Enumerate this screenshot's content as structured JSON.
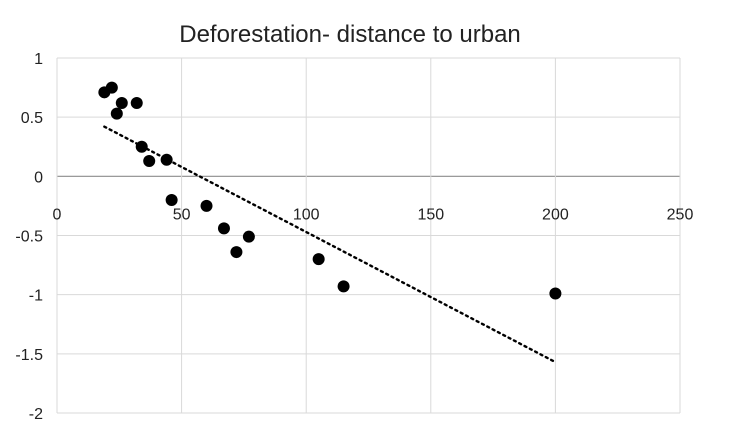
{
  "chart_data": {
    "type": "scatter",
    "title": "Deforestation- distance to urban",
    "xlabel": "",
    "ylabel": "",
    "xlim": [
      0,
      250
    ],
    "ylim": [
      -2,
      1
    ],
    "x_ticks": [
      0,
      50,
      100,
      150,
      200,
      250
    ],
    "y_ticks": [
      1,
      0.5,
      0,
      -0.5,
      -1,
      -1.5,
      -2
    ],
    "grid": true,
    "marker_color": "#000000",
    "trendline": {
      "style": "dotted",
      "color": "#000000",
      "from": {
        "x": 19,
        "y": 0.42
      },
      "to": {
        "x": 200,
        "y": -1.57
      }
    },
    "points": [
      {
        "x": 19,
        "y": 0.71
      },
      {
        "x": 22,
        "y": 0.75
      },
      {
        "x": 24,
        "y": 0.53
      },
      {
        "x": 26,
        "y": 0.62
      },
      {
        "x": 32,
        "y": 0.62
      },
      {
        "x": 34,
        "y": 0.25
      },
      {
        "x": 37,
        "y": 0.13
      },
      {
        "x": 44,
        "y": 0.14
      },
      {
        "x": 46,
        "y": -0.2
      },
      {
        "x": 60,
        "y": -0.25
      },
      {
        "x": 67,
        "y": -0.44
      },
      {
        "x": 72,
        "y": -0.64
      },
      {
        "x": 77,
        "y": -0.51
      },
      {
        "x": 105,
        "y": -0.7
      },
      {
        "x": 115,
        "y": -0.93
      },
      {
        "x": 200,
        "y": -0.99
      }
    ]
  }
}
